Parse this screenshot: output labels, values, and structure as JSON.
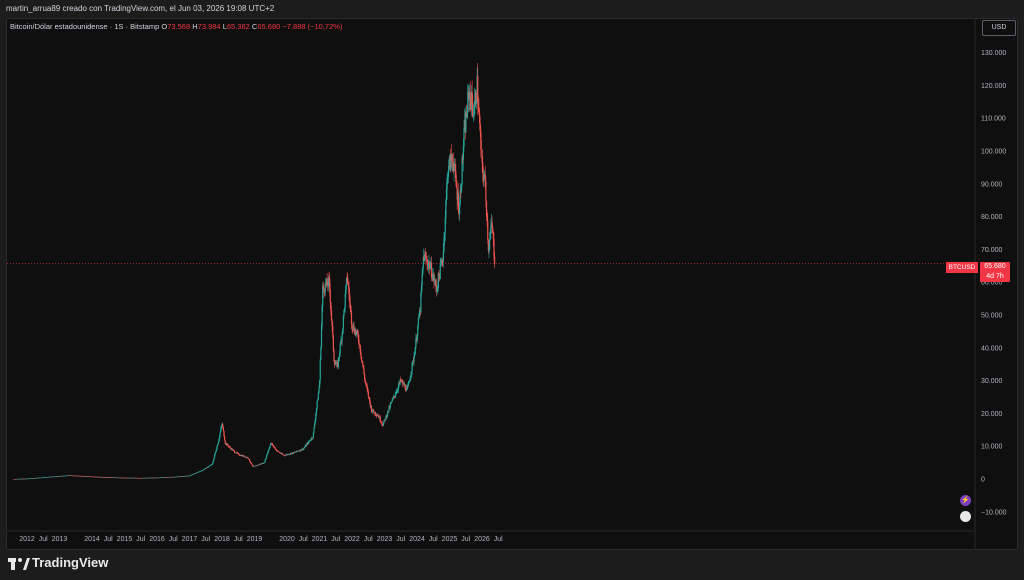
{
  "caption": "martin_arrua89 creado con TradingView.com, el Jun 03, 2026 19:08 UTC+2",
  "legend": {
    "symbol": "Bitcoin/Dólar estadounidense · 1S · Bitstamp",
    "open_label": "O",
    "open": "73.568",
    "high_label": "H",
    "high": "73.984",
    "low_label": "L",
    "low": "65.362",
    "close_label": "C",
    "close": "65.680",
    "change": "−7.888 (−10,72%)"
  },
  "currency_button": "USD",
  "price_tag": {
    "symbol": "BTCUSD",
    "price": "65.680",
    "countdown": "4d 7h"
  },
  "brand": "TradingView",
  "colors": {
    "up": "#26a69a",
    "down": "#ef5350",
    "price_line": "#f23645",
    "background": "#0f0f0f"
  },
  "icons": [
    "bolt-icon",
    "flag-icon",
    "tradingview-logo-icon"
  ],
  "chart_data": {
    "type": "line",
    "title": "Bitcoin/Dólar estadounidense · 1S · Bitstamp",
    "xlabel": "",
    "ylabel": "",
    "ylim": [
      -10000,
      130000
    ],
    "grid": false,
    "yticks": [
      {
        "value": 130000,
        "label": "130.000"
      },
      {
        "value": 120000,
        "label": "120.000"
      },
      {
        "value": 110000,
        "label": "110.000"
      },
      {
        "value": 100000,
        "label": "100.000"
      },
      {
        "value": 90000,
        "label": "90.000"
      },
      {
        "value": 80000,
        "label": "80.000"
      },
      {
        "value": 70000,
        "label": "70.000"
      },
      {
        "value": 60000,
        "label": "60.000"
      },
      {
        "value": 50000,
        "label": "50.000"
      },
      {
        "value": 40000,
        "label": "40.000"
      },
      {
        "value": 30000,
        "label": "30.000"
      },
      {
        "value": 20000,
        "label": "20.000"
      },
      {
        "value": 10000,
        "label": "10.000"
      },
      {
        "value": 0,
        "label": "0"
      },
      {
        "value": -10000,
        "label": "−10.000"
      }
    ],
    "xticks": [
      {
        "t": 2012.0,
        "label": "2012"
      },
      {
        "t": 2012.5,
        "label": "Jul"
      },
      {
        "t": 2013.0,
        "label": "2013"
      },
      {
        "t": 2014.0,
        "label": "2014"
      },
      {
        "t": 2014.5,
        "label": "Jul"
      },
      {
        "t": 2015.0,
        "label": "2015"
      },
      {
        "t": 2015.5,
        "label": "Jul"
      },
      {
        "t": 2016.0,
        "label": "2016"
      },
      {
        "t": 2016.5,
        "label": "Jul"
      },
      {
        "t": 2017.0,
        "label": "2017"
      },
      {
        "t": 2017.5,
        "label": "Jul"
      },
      {
        "t": 2018.0,
        "label": "2018"
      },
      {
        "t": 2018.5,
        "label": "Jul"
      },
      {
        "t": 2019.0,
        "label": "2019"
      },
      {
        "t": 2020.0,
        "label": "2020"
      },
      {
        "t": 2020.5,
        "label": "Jul"
      },
      {
        "t": 2021.0,
        "label": "2021"
      },
      {
        "t": 2021.5,
        "label": "Jul"
      },
      {
        "t": 2022.0,
        "label": "2022"
      },
      {
        "t": 2022.5,
        "label": "Jul"
      },
      {
        "t": 2023.0,
        "label": "2023"
      },
      {
        "t": 2023.5,
        "label": "Jul"
      },
      {
        "t": 2024.0,
        "label": "2024"
      },
      {
        "t": 2024.5,
        "label": "Jul"
      },
      {
        "t": 2025.0,
        "label": "2025"
      },
      {
        "t": 2025.5,
        "label": "Jul"
      },
      {
        "t": 2026.0,
        "label": "2026"
      },
      {
        "t": 2026.5,
        "label": "Jul"
      }
    ],
    "current_price": 65680,
    "series": [
      {
        "x": [
          2011.6,
          2012.0,
          2012.5,
          2013.0,
          2013.3,
          2013.9,
          2014.3,
          2014.9,
          2015.5,
          2016.0,
          2016.5,
          2017.0,
          2017.4,
          2017.7,
          2017.9,
          2018.0,
          2018.1,
          2018.3,
          2018.5,
          2018.8,
          2018.95,
          2019.3,
          2019.5,
          2019.7,
          2019.9,
          2020.2,
          2020.5,
          2020.8,
          2021.0,
          2021.1,
          2021.3,
          2021.45,
          2021.55,
          2021.7,
          2021.85,
          2022.0,
          2022.2,
          2022.4,
          2022.6,
          2022.8,
          2022.95,
          2023.2,
          2023.5,
          2023.7,
          2023.9,
          2024.1,
          2024.2,
          2024.4,
          2024.6,
          2024.8,
          2024.95,
          2025.1,
          2025.3,
          2025.45,
          2025.6,
          2025.75,
          2025.85,
          2026.0,
          2026.1,
          2026.2,
          2026.3,
          2026.4
        ],
        "values": [
          0,
          100,
          500,
          900,
          1100,
          800,
          600,
          400,
          300,
          430,
          650,
          1000,
          2700,
          4500,
          12000,
          17000,
          11000,
          9000,
          7500,
          6500,
          3700,
          5000,
          11000,
          8500,
          7200,
          8000,
          9200,
          13000,
          29000,
          58000,
          60000,
          36000,
          34000,
          45000,
          62000,
          47000,
          43000,
          30000,
          21000,
          19500,
          16500,
          23000,
          30000,
          27000,
          37000,
          52000,
          68000,
          65000,
          58000,
          68000,
          95000,
          98000,
          82000,
          105000,
          118000,
          112000,
          120000,
          95000,
          90000,
          70000,
          78000,
          65680
        ],
        "color": "#26a69a"
      }
    ]
  }
}
